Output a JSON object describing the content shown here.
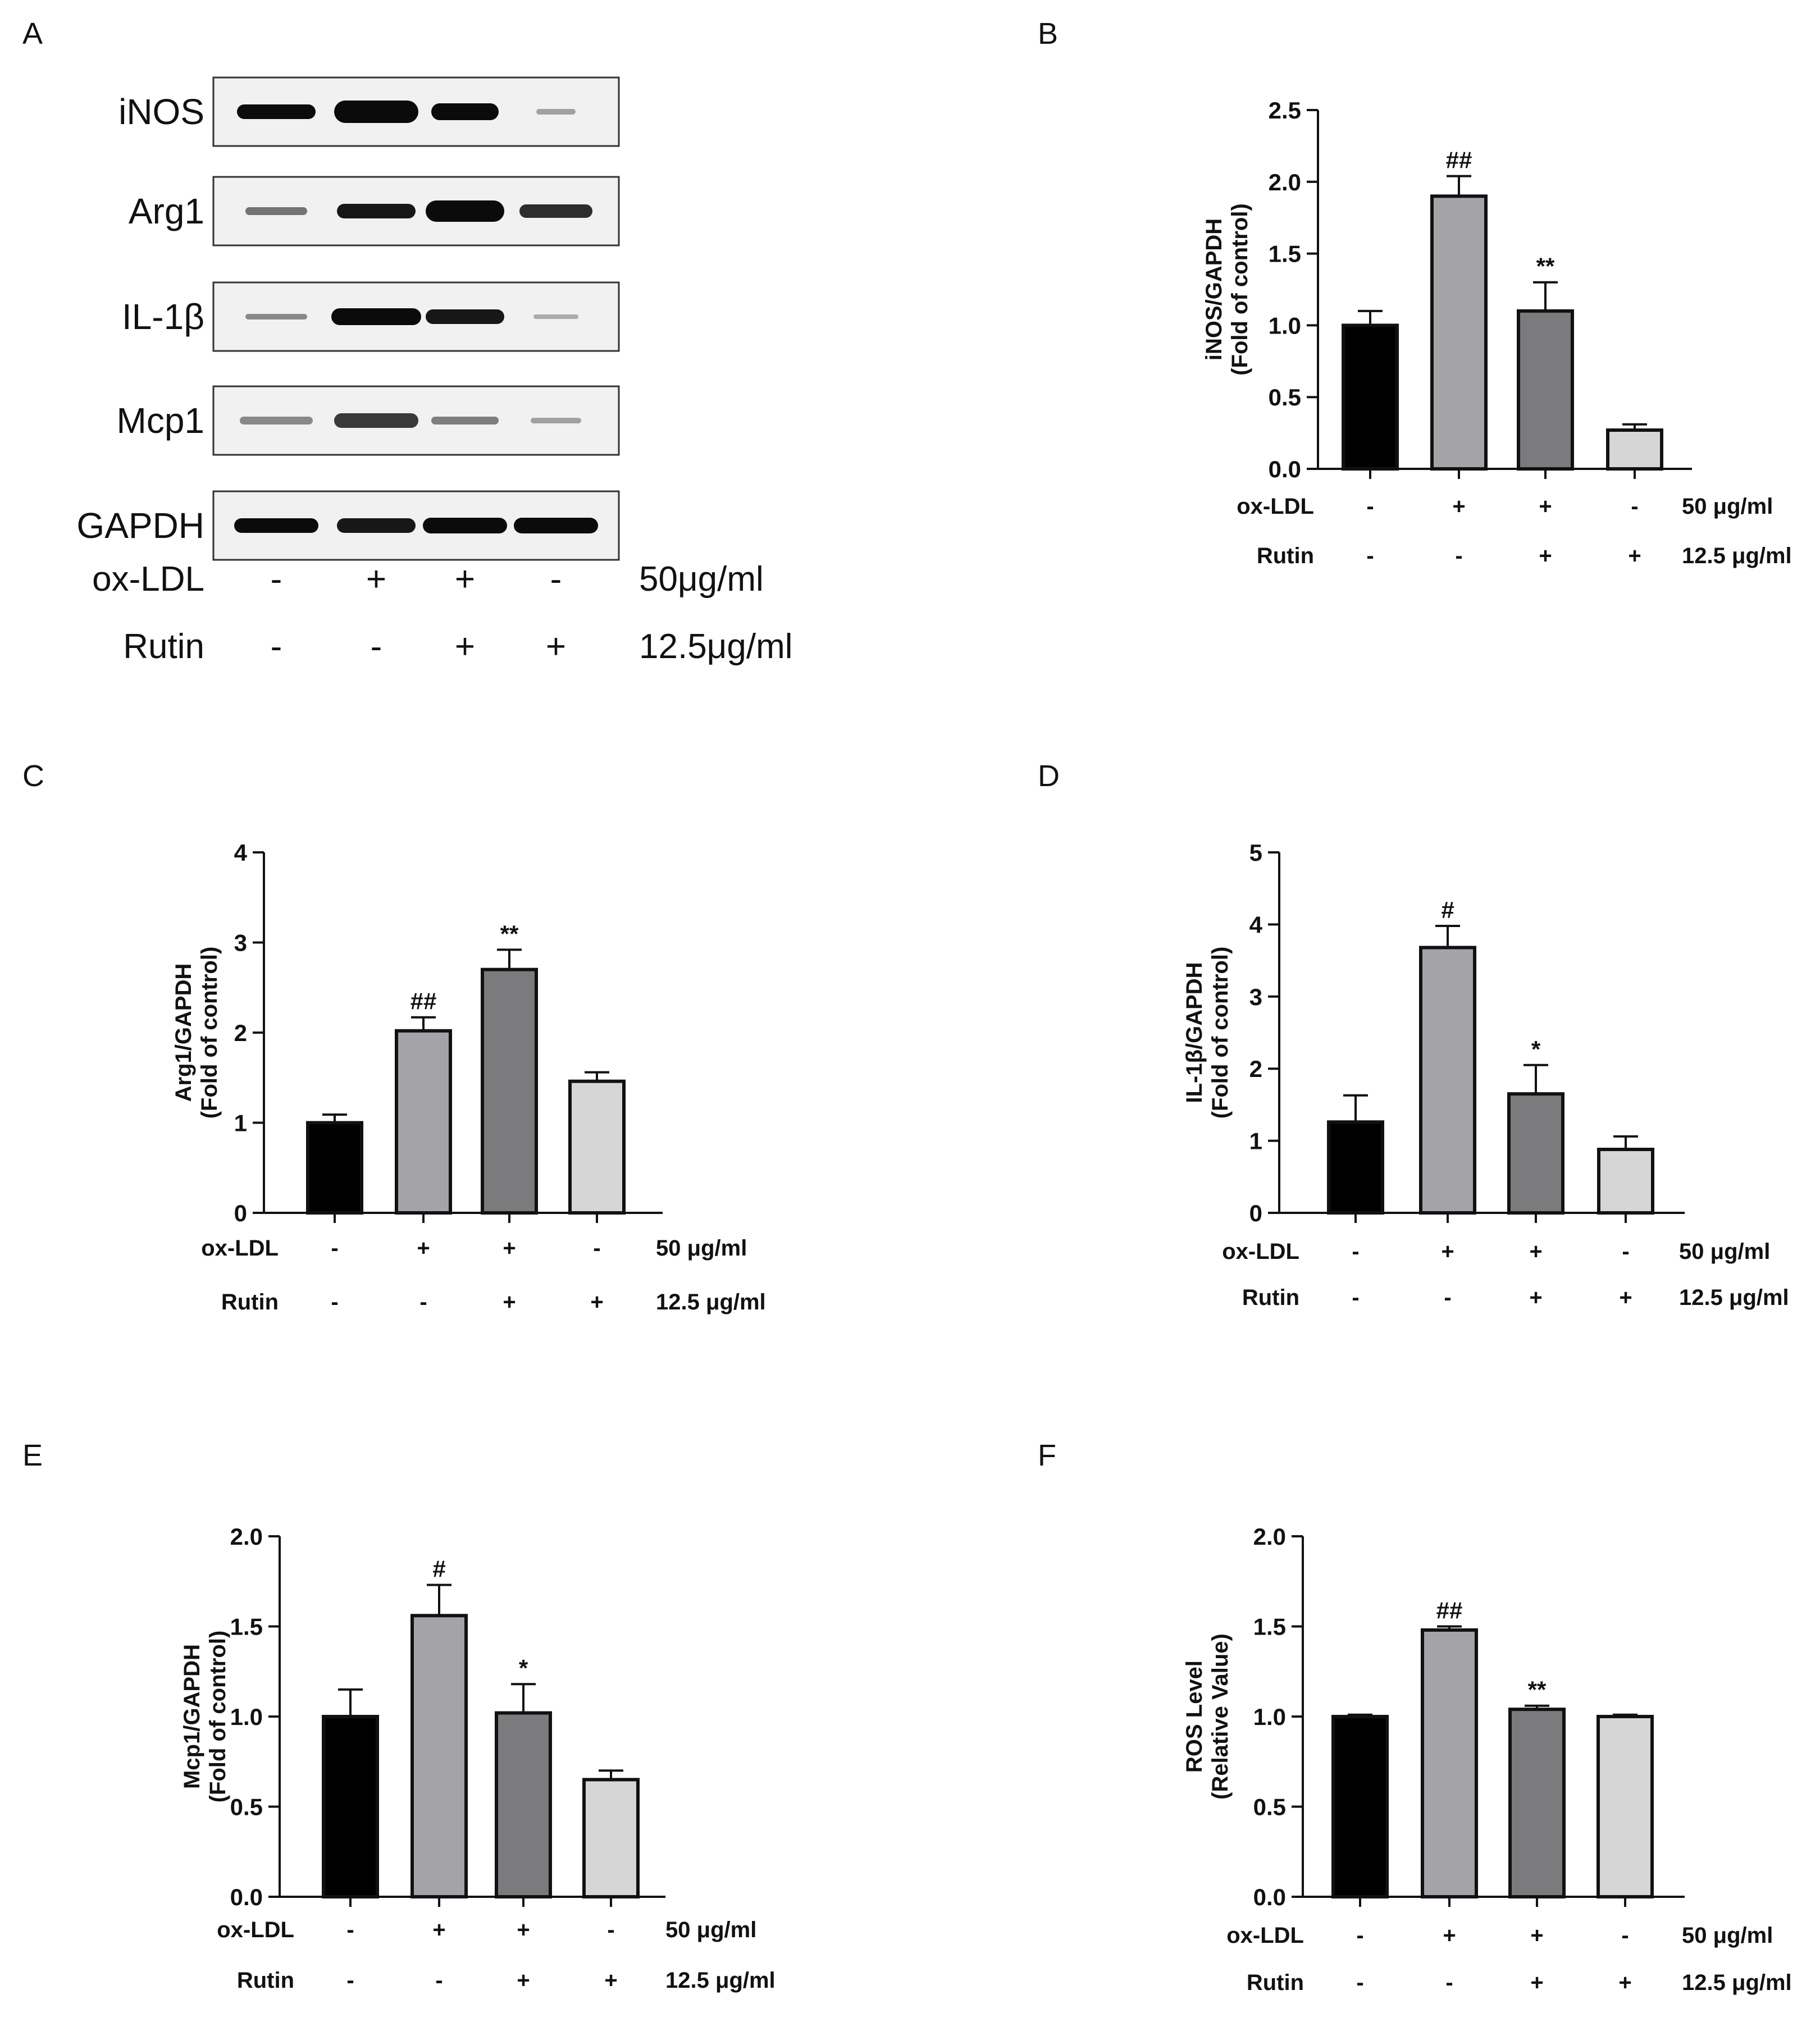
{
  "panel_a": {
    "letter": "A",
    "blot_labels": [
      "iNOS",
      "Arg1",
      "IL-1β",
      "Mcp1",
      "GAPDH"
    ],
    "treatments": [
      {
        "name": "ox-LDL",
        "signs": [
          "-",
          "+",
          "+",
          "-"
        ],
        "dose": "50μg/ml"
      },
      {
        "name": "Rutin",
        "signs": [
          "-",
          "-",
          "+",
          "+"
        ],
        "dose": "12.5μg/ml"
      }
    ]
  },
  "chart_data": [
    {
      "panel": "B",
      "type": "bar",
      "ylabel_line1": "iNOS/GAPDH",
      "ylabel_line2": "(Fold of control)",
      "ylim": [
        0,
        2.5
      ],
      "yticks": [
        "0.0",
        "0.5",
        "1.0",
        "1.5",
        "2.0",
        "2.5"
      ],
      "values": [
        1.0,
        1.9,
        1.1,
        0.27
      ],
      "errors": [
        0.1,
        0.14,
        0.2,
        0.04
      ],
      "significance": [
        "",
        "##",
        "**",
        ""
      ],
      "colors": [
        "#000000",
        "#a3a3a8",
        "#7b7b7e",
        "#d6d6d6"
      ],
      "treatments": [
        {
          "name": "ox-LDL",
          "signs": [
            "-",
            "+",
            "+",
            "-"
          ],
          "dose": "50 μg/ml"
        },
        {
          "name": "Rutin",
          "signs": [
            "-",
            "-",
            "+",
            "+"
          ],
          "dose": "12.5 μg/ml"
        }
      ]
    },
    {
      "panel": "C",
      "type": "bar",
      "ylabel_line1": "Arg1/GAPDH",
      "ylabel_line2": "(Fold of control)",
      "ylim": [
        0,
        4
      ],
      "yticks": [
        "0",
        "1",
        "2",
        "3",
        "4"
      ],
      "values": [
        1.0,
        2.02,
        2.7,
        1.46
      ],
      "errors": [
        0.09,
        0.15,
        0.22,
        0.1
      ],
      "significance": [
        "",
        "##",
        "**",
        ""
      ],
      "colors": [
        "#000000",
        "#a3a3a8",
        "#7b7b7e",
        "#d6d6d6"
      ],
      "treatments": [
        {
          "name": "ox-LDL",
          "signs": [
            "-",
            "+",
            "+",
            "-"
          ],
          "dose": "50 μg/ml"
        },
        {
          "name": "Rutin",
          "signs": [
            "-",
            "-",
            "+",
            "+"
          ],
          "dose": "12.5 μg/ml"
        }
      ]
    },
    {
      "panel": "D",
      "type": "bar",
      "ylabel_line1": "IL-1β/GAPDH",
      "ylabel_line2": "(Fold of control)",
      "ylim": [
        0,
        5
      ],
      "yticks": [
        "0",
        "1",
        "2",
        "3",
        "4",
        "5"
      ],
      "values": [
        1.26,
        3.68,
        1.65,
        0.88
      ],
      "errors": [
        0.37,
        0.3,
        0.4,
        0.18
      ],
      "significance": [
        "",
        "#",
        "*",
        ""
      ],
      "colors": [
        "#000000",
        "#a3a3a8",
        "#7b7b7e",
        "#d6d6d6"
      ],
      "treatments": [
        {
          "name": "ox-LDL",
          "signs": [
            "-",
            "+",
            "+",
            "-"
          ],
          "dose": "50 μg/ml"
        },
        {
          "name": "Rutin",
          "signs": [
            "-",
            "-",
            "+",
            "+"
          ],
          "dose": "12.5 μg/ml"
        }
      ]
    },
    {
      "panel": "E",
      "type": "bar",
      "ylabel_line1": "Mcp1/GAPDH",
      "ylabel_line2": "(Fold of control)",
      "ylim": [
        0,
        2.0
      ],
      "yticks": [
        "0.0",
        "0.5",
        "1.0",
        "1.5",
        "2.0"
      ],
      "values": [
        1.0,
        1.56,
        1.02,
        0.65
      ],
      "errors": [
        0.15,
        0.17,
        0.16,
        0.05
      ],
      "significance": [
        "",
        "#",
        "*",
        ""
      ],
      "colors": [
        "#000000",
        "#a3a3a8",
        "#7b7b7e",
        "#d6d6d6"
      ],
      "treatments": [
        {
          "name": "ox-LDL",
          "signs": [
            "-",
            "+",
            "+",
            "-"
          ],
          "dose": "50 μg/ml"
        },
        {
          "name": "Rutin",
          "signs": [
            "-",
            "-",
            "+",
            "+"
          ],
          "dose": "12.5 μg/ml"
        }
      ]
    },
    {
      "panel": "F",
      "type": "bar",
      "ylabel_line1": "ROS Level",
      "ylabel_line2": "(Relative Value)",
      "ylim": [
        0,
        2.0
      ],
      "yticks": [
        "0.0",
        "0.5",
        "1.0",
        "1.5",
        "2.0"
      ],
      "values": [
        1.0,
        1.48,
        1.04,
        1.0
      ],
      "errors": [
        0.01,
        0.02,
        0.02,
        0.01
      ],
      "significance": [
        "",
        "##",
        "**",
        ""
      ],
      "colors": [
        "#000000",
        "#a3a3a8",
        "#7b7b7e",
        "#d6d6d6"
      ],
      "treatments": [
        {
          "name": "ox-LDL",
          "signs": [
            "-",
            "+",
            "+",
            "-"
          ],
          "dose": "50 μg/ml"
        },
        {
          "name": "Rutin",
          "signs": [
            "-",
            "-",
            "+",
            "+"
          ],
          "dose": "12.5 μg/ml"
        }
      ]
    }
  ]
}
